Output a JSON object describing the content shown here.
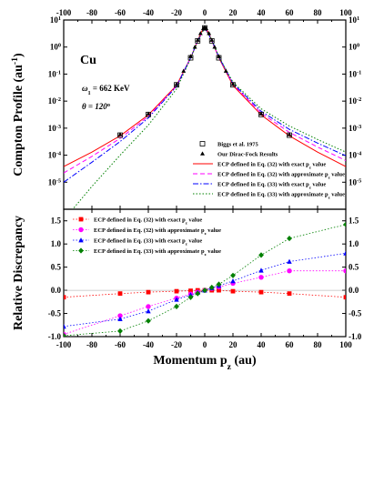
{
  "chart_data": [
    {
      "type": "line",
      "panel": "top",
      "yscale": "log",
      "xlim": [
        -100,
        100
      ],
      "ylim": [
        1e-06,
        10
      ],
      "ylabel": "Compton Profile (au",
      "ylabel_sup": "-1",
      "ylabel_end": ")",
      "annotation_element": "Cu",
      "annotation_energy": "ω",
      "annotation_energy_sub": "1",
      "annotation_energy_value": " = 662 KeV",
      "annotation_angle": "θ = 120",
      "annotation_angle_sup": "o",
      "x_ticks": [
        -100,
        -80,
        -60,
        -40,
        -20,
        0,
        20,
        40,
        60,
        80,
        100
      ],
      "x_tick_labels": [
        "-100",
        "-80",
        "-60",
        "-40",
        "-20",
        "0",
        "20",
        "40",
        "60",
        "80",
        "100"
      ],
      "y_ticks": [
        1e-06,
        1e-05,
        0.0001,
        0.001,
        0.01,
        0.1,
        1,
        10
      ],
      "y_tick_labels": [
        {
          "base": "10",
          "exp": "-6"
        },
        {
          "base": "10",
          "exp": "-5"
        },
        {
          "base": "10",
          "exp": "-4"
        },
        {
          "base": "10",
          "exp": "-3"
        },
        {
          "base": "10",
          "exp": "-2"
        },
        {
          "base": "10",
          "exp": "-1"
        },
        {
          "base": "10",
          "exp": "0"
        },
        {
          "base": "10",
          "exp": "1"
        }
      ],
      "series": [
        {
          "name": "Biggs et al. 1975",
          "style": "marker",
          "marker": "square-open",
          "color": "#000000",
          "x": [
            -60,
            -40,
            -20,
            -10,
            -5,
            0,
            5,
            10,
            20,
            40,
            60
          ],
          "y": [
            0.00055,
            0.0032,
            0.04,
            0.4,
            1.7,
            5.1,
            1.7,
            0.4,
            0.04,
            0.0032,
            0.00055
          ]
        },
        {
          "name": "Our Dirac-Fock Results",
          "style": "marker",
          "marker": "triangle",
          "color": "#000000",
          "x": [
            -60,
            -40,
            -20,
            -15,
            -10,
            -7,
            -5,
            -3,
            -1,
            0,
            1,
            3,
            5,
            7,
            10,
            15,
            20,
            40,
            60
          ],
          "y": [
            0.00058,
            0.0034,
            0.042,
            0.13,
            0.45,
            1.0,
            1.8,
            3.2,
            4.9,
            5.3,
            4.9,
            3.2,
            1.8,
            1.0,
            0.45,
            0.13,
            0.042,
            0.0034,
            0.00058
          ]
        },
        {
          "name": "ECP defined in Eq. (32) with exact p",
          "name_sub": "z",
          "name_end": " value",
          "style": "solid",
          "color": "#ff0000",
          "x": [
            -100,
            -80,
            -60,
            -40,
            -20,
            -10,
            -5,
            -3,
            -1,
            0,
            1,
            3,
            5,
            10,
            20,
            40,
            60,
            80,
            100
          ],
          "y": [
            3.8e-05,
            0.00013,
            0.00052,
            0.0031,
            0.038,
            0.4,
            1.7,
            3.1,
            4.8,
            5.2,
            4.8,
            3.1,
            1.7,
            0.4,
            0.038,
            0.0031,
            0.00052,
            0.00013,
            3.8e-05
          ]
        },
        {
          "name": "ECP defined in Eq. (32) with approximate p",
          "name_sub": "z",
          "name_end": " value",
          "style": "dash",
          "color": "#ff00ff",
          "x": [
            -100,
            -80,
            -60,
            -40,
            -20,
            -10,
            -5,
            0,
            5,
            10,
            20,
            40,
            60,
            80,
            100
          ],
          "y": [
            2.2e-05,
            9e-05,
            0.00042,
            0.0027,
            0.036,
            0.4,
            1.7,
            5.2,
            1.75,
            0.42,
            0.042,
            0.0036,
            0.0007,
            0.0002,
            6.3e-05
          ]
        },
        {
          "name": "ECP defined in Eq. (33) with exact p",
          "name_sub": "z",
          "name_end": " value",
          "style": "dashdot",
          "color": "#0000ff",
          "x": [
            -100,
            -80,
            -60,
            -40,
            -20,
            -10,
            -5,
            0,
            5,
            10,
            20,
            40,
            60,
            80,
            100
          ],
          "y": [
            1e-05,
            5.5e-05,
            0.00032,
            0.0024,
            0.035,
            0.4,
            1.7,
            5.2,
            1.78,
            0.43,
            0.045,
            0.0042,
            0.0009,
            0.00028,
            9.5e-05
          ]
        },
        {
          "name": "ECP defined in Eq. (33) with approximate p",
          "name_sub": "z",
          "name_end": " value",
          "style": "dot",
          "color": "#008000",
          "x": [
            -100,
            -80,
            -60,
            -40,
            -20,
            -10,
            -5,
            0,
            5,
            10,
            20,
            40,
            60,
            80,
            100
          ],
          "y": [
            4e-07,
            7e-06,
            0.0001,
            0.0013,
            0.028,
            0.38,
            1.65,
            5.2,
            1.8,
            0.45,
            0.05,
            0.0052,
            0.0012,
            0.00038,
            0.00013
          ]
        }
      ]
    },
    {
      "type": "line",
      "panel": "bottom",
      "xlim": [
        -100,
        100
      ],
      "ylim": [
        -1.0,
        1.75
      ],
      "xlabel": "Momentum p",
      "xlabel_sub": "z",
      "xlabel_end": " (au)",
      "ylabel": "Relative Discrepancy",
      "x_ticks": [
        -100,
        -80,
        -60,
        -40,
        -20,
        0,
        20,
        40,
        60,
        80,
        100
      ],
      "x_tick_labels": [
        "-100",
        "-80",
        "-60",
        "-40",
        "-20",
        "0",
        "20",
        "40",
        "60",
        "80",
        "100"
      ],
      "y_ticks": [
        -1.0,
        -0.5,
        0.0,
        0.5,
        1.0,
        1.5
      ],
      "y_tick_labels": [
        "-1.0",
        "-0.5",
        "0.0",
        "0.5",
        "1.0",
        "1.5"
      ],
      "series": [
        {
          "name": "ECP defined in Eq. (32) with exact p",
          "name_sub": "z",
          "name_end": " value",
          "marker": "square",
          "color": "#ff0000",
          "x": [
            -100,
            -60,
            -40,
            -20,
            -10,
            -5,
            0,
            5,
            10,
            20,
            40,
            60,
            100
          ],
          "y": [
            -0.15,
            -0.07,
            -0.04,
            -0.02,
            -0.01,
            0.0,
            0.0,
            0.0,
            0.0,
            -0.02,
            -0.04,
            -0.07,
            -0.15
          ]
        },
        {
          "name": "ECP defined in Eq. (32) with approximate p",
          "name_sub": "z",
          "name_end": " value",
          "marker": "circle",
          "color": "#ff00ff",
          "x": [
            -100,
            -60,
            -40,
            -20,
            -10,
            -5,
            0,
            5,
            10,
            20,
            40,
            60,
            100
          ],
          "y": [
            -0.95,
            -0.55,
            -0.35,
            -0.17,
            -0.08,
            -0.04,
            0.0,
            0.04,
            0.07,
            0.15,
            0.28,
            0.42,
            0.42
          ]
        },
        {
          "name": "ECP defined in Eq. (33) with exact p",
          "name_sub": "z",
          "name_end": " value",
          "marker": "triangle",
          "color": "#0000ff",
          "x": [
            -100,
            -60,
            -40,
            -20,
            -10,
            -5,
            0,
            5,
            10,
            20,
            40,
            60,
            100
          ],
          "y": [
            -0.78,
            -0.62,
            -0.45,
            -0.2,
            -0.1,
            -0.05,
            0.0,
            0.05,
            0.1,
            0.2,
            0.43,
            0.62,
            0.8
          ]
        },
        {
          "name": "ECP defined in Eq. (33) with approximate p",
          "name_sub": "z",
          "name_end": " value",
          "marker": "diamond",
          "color": "#008000",
          "x": [
            -100,
            -60,
            -40,
            -20,
            -10,
            -5,
            0,
            5,
            10,
            20,
            40,
            60,
            100
          ],
          "y": [
            -0.98,
            -0.88,
            -0.66,
            -0.35,
            -0.15,
            -0.07,
            0.0,
            0.06,
            0.13,
            0.32,
            0.76,
            1.12,
            1.42
          ]
        }
      ]
    }
  ]
}
